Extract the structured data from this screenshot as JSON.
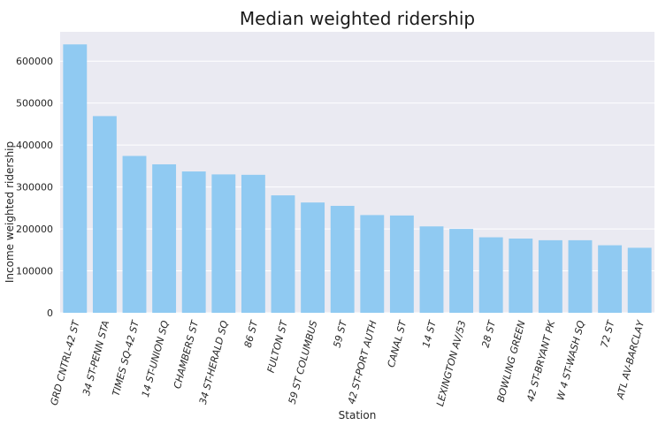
{
  "chart_data": {
    "type": "bar",
    "title": "Median weighted ridership",
    "xlabel": "Station",
    "ylabel": "Income weighted ridership",
    "ylim": [
      0,
      670000
    ],
    "yticks": [
      0,
      100000,
      200000,
      300000,
      400000,
      500000,
      600000
    ],
    "grid": true,
    "categories": [
      "GRD CNTRL-42 ST",
      "34 ST-PENN STA",
      "TIMES SQ-42 ST",
      "14 ST-UNION SQ",
      "CHAMBERS ST",
      "34 ST-HERALD SQ",
      "86 ST",
      "FULTON ST",
      "59 ST COLUMBUS",
      "59 ST",
      "42 ST-PORT AUTH",
      "CANAL ST",
      "14 ST",
      "LEXINGTON AV/53",
      "28 ST",
      "BOWLING GREEN",
      "42 ST-BRYANT PK",
      "W 4 ST-WASH SQ",
      "72 ST",
      "ATL AV-BARCLAY"
    ],
    "values": [
      640000,
      469000,
      374000,
      354000,
      337000,
      330000,
      329000,
      280000,
      263000,
      255000,
      233000,
      232000,
      206000,
      200000,
      180000,
      177000,
      173000,
      173000,
      161000,
      155000
    ],
    "colors": {
      "bar": "#90CAF2",
      "background": "#EAEAF2",
      "grid": "#FFFFFF"
    }
  }
}
